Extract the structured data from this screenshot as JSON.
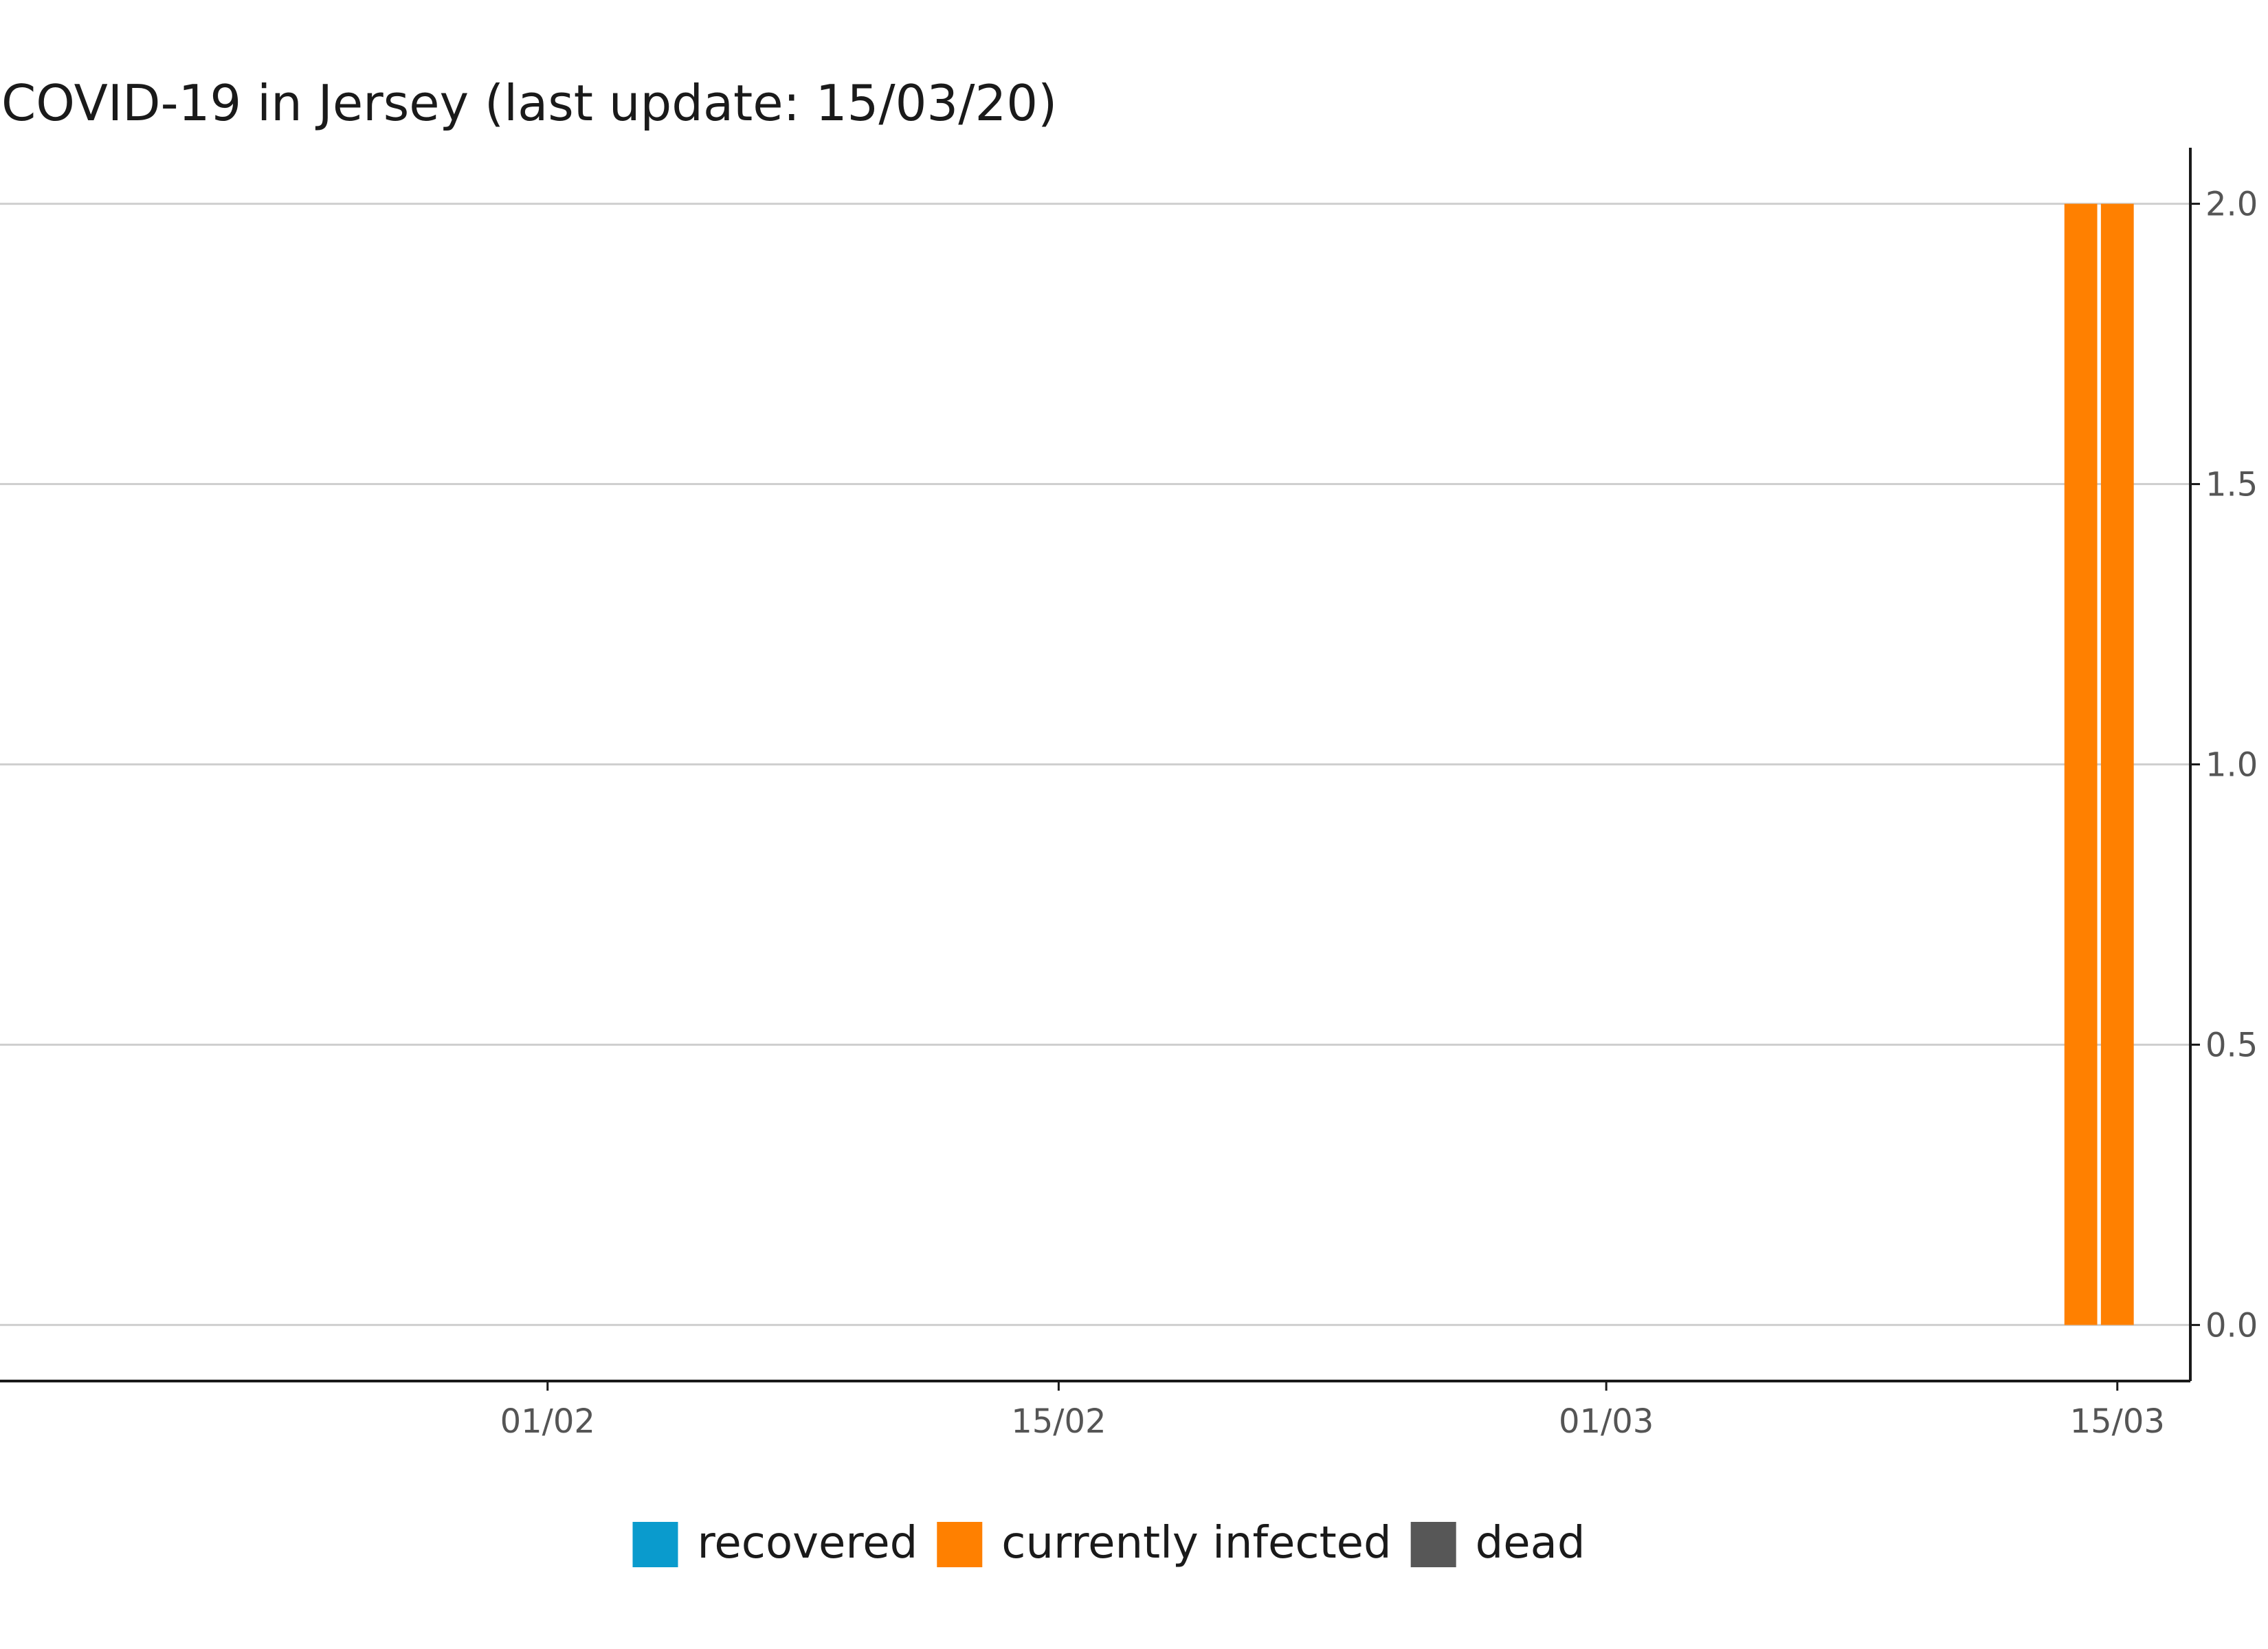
{
  "chart_data": {
    "type": "bar",
    "title": "COVID-19 in Jersey (last update: 15/03/20)",
    "xlabel": "",
    "ylabel": "",
    "x_axis": {
      "type": "date",
      "range": [
        "2020-01-17",
        "2020-03-17"
      ],
      "ticks": [
        {
          "date": "2020-02-01",
          "label": "01/02"
        },
        {
          "date": "2020-02-15",
          "label": "15/02"
        },
        {
          "date": "2020-03-01",
          "label": "01/03"
        },
        {
          "date": "2020-03-15",
          "label": "15/03"
        }
      ]
    },
    "y_axis": {
      "position": "right",
      "ylim": [
        -0.1,
        2.1
      ],
      "ticks": [
        {
          "value": 0,
          "label": "0.0"
        },
        {
          "value": 0.5,
          "label": "0.5"
        },
        {
          "value": 1,
          "label": "1.0"
        },
        {
          "value": 1.5,
          "label": "1.5"
        },
        {
          "value": 2,
          "label": "2.0"
        }
      ]
    },
    "grid": "horizontal",
    "stacked": true,
    "legend_position": "bottom",
    "series": [
      {
        "name": "recovered",
        "color": "#0a9bcd",
        "points": []
      },
      {
        "name": "currently infected",
        "color": "#ff8000",
        "points": [
          {
            "date": "2020-03-14",
            "value": 2
          },
          {
            "date": "2020-03-15",
            "value": 2
          }
        ]
      },
      {
        "name": "dead",
        "color": "#575757",
        "points": []
      }
    ]
  }
}
